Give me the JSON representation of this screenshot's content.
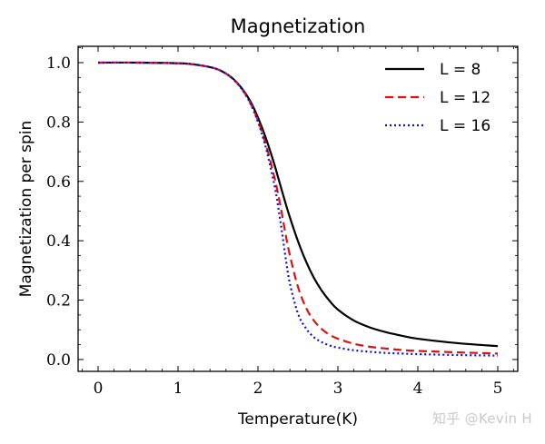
{
  "chart_data": {
    "type": "line",
    "title": "Magnetization",
    "xlabel": "Temperature(K)",
    "ylabel": "Magnetization per spin",
    "xlim": [
      -0.25,
      5.25
    ],
    "ylim": [
      -0.04,
      1.055
    ],
    "xticks": [
      0,
      1,
      2,
      3,
      4,
      5
    ],
    "xtick_labels": [
      "0",
      "1",
      "2",
      "3",
      "4",
      "5"
    ],
    "yticks": [
      0.0,
      0.2,
      0.4,
      0.6,
      0.8,
      1.0
    ],
    "ytick_labels": [
      "0.0",
      "0.2",
      "0.4",
      "0.6",
      "0.8",
      "1.0"
    ],
    "grid": false,
    "legend_position": "top-right",
    "x": [
      0.0,
      0.5,
      1.0,
      1.2,
      1.4,
      1.5,
      1.6,
      1.7,
      1.8,
      1.9,
      2.0,
      2.1,
      2.2,
      2.25,
      2.3,
      2.35,
      2.4,
      2.5,
      2.6,
      2.7,
      2.8,
      2.9,
      3.0,
      3.2,
      3.4,
      3.6,
      3.8,
      4.0,
      4.5,
      5.0
    ],
    "series": [
      {
        "name": "L = 8",
        "color": "#000000",
        "style": "solid",
        "values": [
          1.0,
          1.0,
          0.998,
          0.994,
          0.985,
          0.977,
          0.963,
          0.943,
          0.913,
          0.872,
          0.815,
          0.745,
          0.662,
          0.615,
          0.568,
          0.522,
          0.478,
          0.399,
          0.331,
          0.275,
          0.231,
          0.196,
          0.168,
          0.131,
          0.108,
          0.092,
          0.08,
          0.07,
          0.055,
          0.045
        ]
      },
      {
        "name": "L = 12",
        "color": "#dd1111",
        "style": "dashed",
        "values": [
          1.0,
          1.0,
          0.998,
          0.994,
          0.985,
          0.977,
          0.963,
          0.942,
          0.911,
          0.867,
          0.805,
          0.724,
          0.62,
          0.56,
          0.49,
          0.416,
          0.35,
          0.245,
          0.175,
          0.131,
          0.102,
          0.083,
          0.07,
          0.053,
          0.043,
          0.037,
          0.032,
          0.029,
          0.024,
          0.02
        ]
      },
      {
        "name": "L = 16",
        "color": "#1111cc",
        "style": "dotted",
        "values": [
          1.0,
          1.0,
          0.998,
          0.994,
          0.985,
          0.977,
          0.963,
          0.942,
          0.91,
          0.865,
          0.8,
          0.712,
          0.595,
          0.52,
          0.43,
          0.335,
          0.255,
          0.155,
          0.105,
          0.075,
          0.058,
          0.047,
          0.04,
          0.031,
          0.026,
          0.022,
          0.02,
          0.018,
          0.015,
          0.013
        ]
      }
    ]
  },
  "watermark": "知乎 @Kevin H"
}
